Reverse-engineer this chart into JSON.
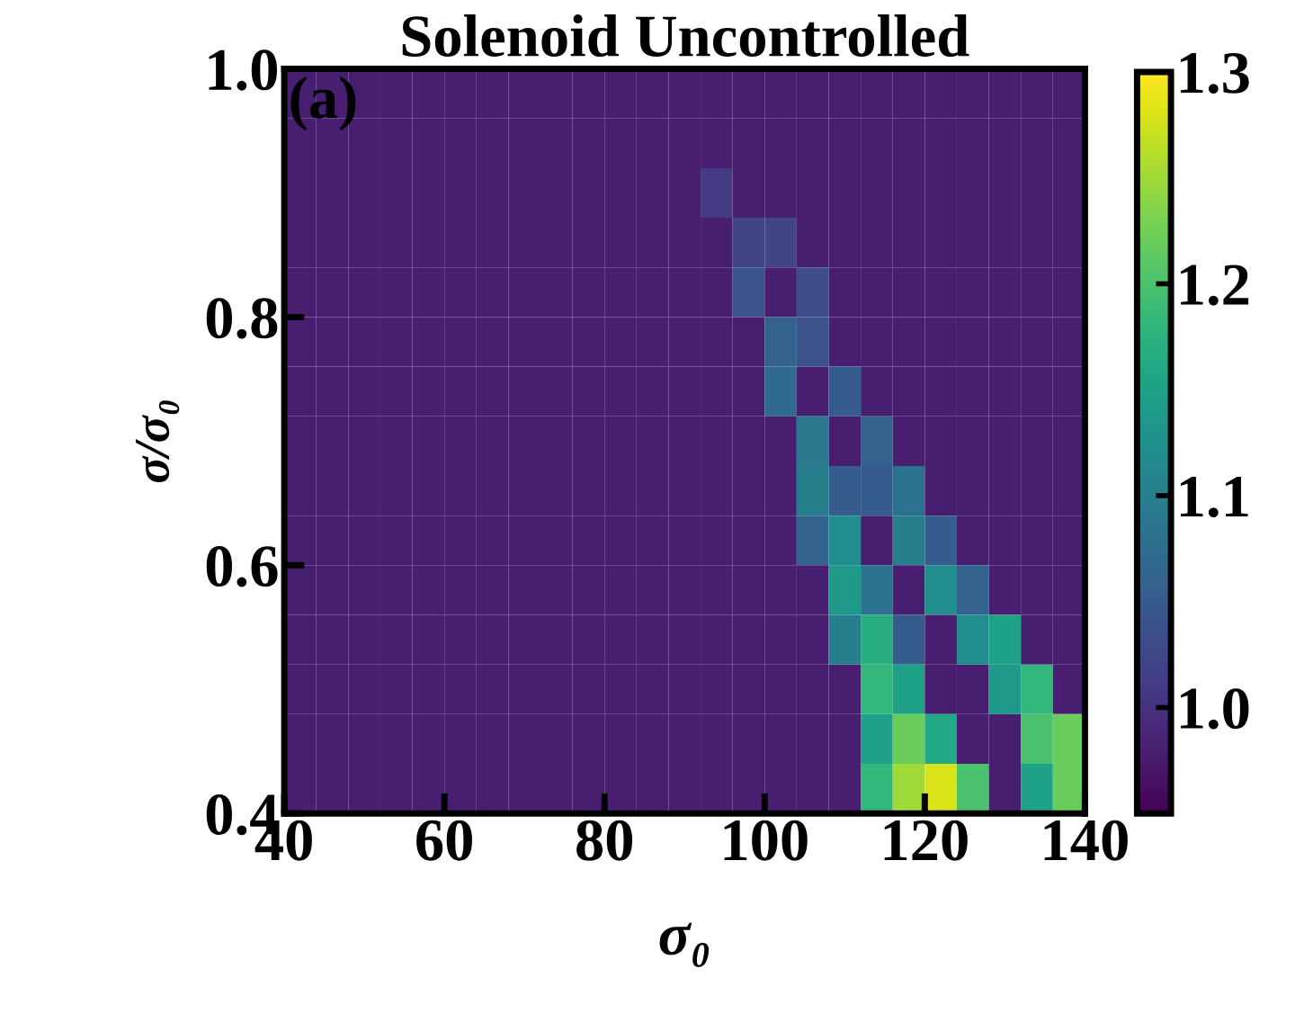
{
  "chart_data": {
    "type": "heatmap",
    "title": "Solenoid Uncontrolled",
    "xlabel": "σ₀",
    "ylabel": "σ/σ₀",
    "annotations": [
      "(a)"
    ],
    "xlim": [
      40,
      140
    ],
    "ylim": [
      0.4,
      1.0
    ],
    "xticks": [
      40,
      60,
      80,
      100,
      120,
      140
    ],
    "yticks": [
      {
        "value": 0.4,
        "label": "0.4"
      },
      {
        "value": 0.6,
        "label": "0.6"
      },
      {
        "value": 0.8,
        "label": "0.8"
      },
      {
        "value": 1.0,
        "label": "1.0"
      }
    ],
    "clim": [
      0.95,
      1.3
    ],
    "cticks": [
      {
        "value": 1.0,
        "label": "1.0"
      },
      {
        "value": 1.1,
        "label": "1.1"
      },
      {
        "value": 1.2,
        "label": "1.2"
      },
      {
        "value": 1.3,
        "label": "1.3"
      }
    ],
    "cells": [
      [
        0.98,
        0.98,
        0.98,
        0.98,
        0.98,
        0.98,
        0.98,
        0.98,
        0.98,
        0.98,
        0.98,
        0.98,
        0.98,
        0.98,
        0.98,
        0.98,
        0.98,
        0.98,
        0.98,
        0.98,
        0.98,
        0.98,
        0.98,
        0.98,
        0.98
      ],
      [
        0.98,
        0.98,
        0.98,
        0.98,
        0.98,
        0.98,
        0.98,
        0.98,
        0.98,
        0.98,
        0.98,
        0.98,
        0.98,
        0.98,
        0.98,
        0.98,
        0.98,
        0.98,
        0.98,
        0.98,
        0.98,
        0.98,
        0.98,
        0.98,
        0.98
      ],
      [
        0.98,
        0.98,
        0.98,
        0.98,
        0.98,
        0.98,
        0.98,
        0.98,
        0.98,
        0.98,
        0.98,
        0.98,
        0.98,
        1.01,
        0.98,
        0.98,
        0.98,
        0.98,
        0.98,
        0.98,
        0.98,
        0.98,
        0.98,
        0.98,
        0.98
      ],
      [
        0.98,
        0.98,
        0.98,
        0.98,
        0.98,
        0.98,
        0.98,
        0.98,
        0.98,
        0.98,
        0.98,
        0.98,
        0.98,
        0.98,
        1.02,
        1.02,
        0.98,
        0.98,
        0.98,
        0.98,
        0.98,
        0.98,
        0.98,
        0.98,
        0.98
      ],
      [
        0.98,
        0.98,
        0.98,
        0.98,
        0.98,
        0.98,
        0.98,
        0.98,
        0.98,
        0.98,
        0.98,
        0.98,
        0.98,
        0.98,
        1.04,
        0.98,
        1.03,
        0.98,
        0.98,
        0.98,
        0.98,
        0.98,
        0.98,
        0.98,
        0.98
      ],
      [
        0.98,
        0.98,
        0.98,
        0.98,
        0.98,
        0.98,
        0.98,
        0.98,
        0.98,
        0.98,
        0.98,
        0.98,
        0.98,
        0.98,
        0.98,
        1.06,
        1.04,
        0.98,
        0.98,
        0.98,
        0.98,
        0.98,
        0.98,
        0.98,
        0.98
      ],
      [
        0.98,
        0.98,
        0.98,
        0.98,
        0.98,
        0.98,
        0.98,
        0.98,
        0.98,
        0.98,
        0.98,
        0.98,
        0.98,
        0.98,
        0.98,
        1.07,
        0.98,
        1.05,
        0.98,
        0.98,
        0.98,
        0.98,
        0.98,
        0.98,
        0.98
      ],
      [
        0.98,
        0.98,
        0.98,
        0.98,
        0.98,
        0.98,
        0.98,
        0.98,
        0.98,
        0.98,
        0.98,
        0.98,
        0.98,
        0.98,
        0.98,
        0.98,
        1.09,
        0.98,
        1.06,
        0.98,
        0.98,
        0.98,
        0.98,
        0.98,
        0.98
      ],
      [
        0.98,
        0.98,
        0.98,
        0.98,
        0.98,
        0.98,
        0.98,
        0.98,
        0.98,
        0.98,
        0.98,
        0.98,
        0.98,
        0.98,
        0.98,
        0.98,
        1.1,
        1.05,
        1.05,
        1.08,
        0.98,
        0.98,
        0.98,
        0.98,
        0.98
      ],
      [
        0.98,
        0.98,
        0.98,
        0.98,
        0.98,
        0.98,
        0.98,
        0.98,
        0.98,
        0.98,
        0.98,
        0.98,
        0.98,
        0.98,
        0.98,
        0.98,
        1.06,
        1.12,
        0.98,
        1.1,
        1.05,
        0.98,
        0.98,
        0.98,
        0.98
      ],
      [
        0.98,
        0.98,
        0.98,
        0.98,
        0.98,
        0.98,
        0.98,
        0.98,
        0.98,
        0.98,
        0.98,
        0.98,
        0.98,
        0.98,
        0.98,
        0.98,
        0.98,
        1.14,
        1.08,
        0.98,
        1.12,
        1.06,
        0.98,
        0.98,
        0.98
      ],
      [
        0.98,
        0.98,
        0.98,
        0.98,
        0.98,
        0.98,
        0.98,
        0.98,
        0.98,
        0.98,
        0.98,
        0.98,
        0.98,
        0.98,
        0.98,
        0.98,
        0.98,
        1.1,
        1.17,
        1.05,
        0.98,
        1.12,
        1.15,
        0.98,
        0.98
      ],
      [
        0.98,
        0.98,
        0.98,
        0.98,
        0.98,
        0.98,
        0.98,
        0.98,
        0.98,
        0.98,
        0.98,
        0.98,
        0.98,
        0.98,
        0.98,
        0.98,
        0.98,
        0.98,
        1.18,
        1.15,
        0.98,
        0.98,
        1.14,
        1.18,
        0.98
      ],
      [
        0.98,
        0.98,
        0.98,
        0.98,
        0.98,
        0.98,
        0.98,
        0.98,
        0.98,
        0.98,
        0.98,
        0.98,
        0.98,
        0.98,
        0.98,
        0.98,
        0.98,
        0.98,
        1.15,
        1.22,
        1.16,
        0.98,
        0.98,
        1.2,
        1.22
      ],
      [
        0.98,
        0.98,
        0.98,
        0.98,
        0.98,
        0.98,
        0.98,
        0.98,
        0.98,
        0.98,
        0.98,
        0.98,
        0.98,
        0.98,
        0.98,
        0.98,
        0.98,
        0.98,
        1.18,
        1.25,
        1.28,
        1.2,
        0.98,
        1.15,
        1.22
      ]
    ]
  }
}
